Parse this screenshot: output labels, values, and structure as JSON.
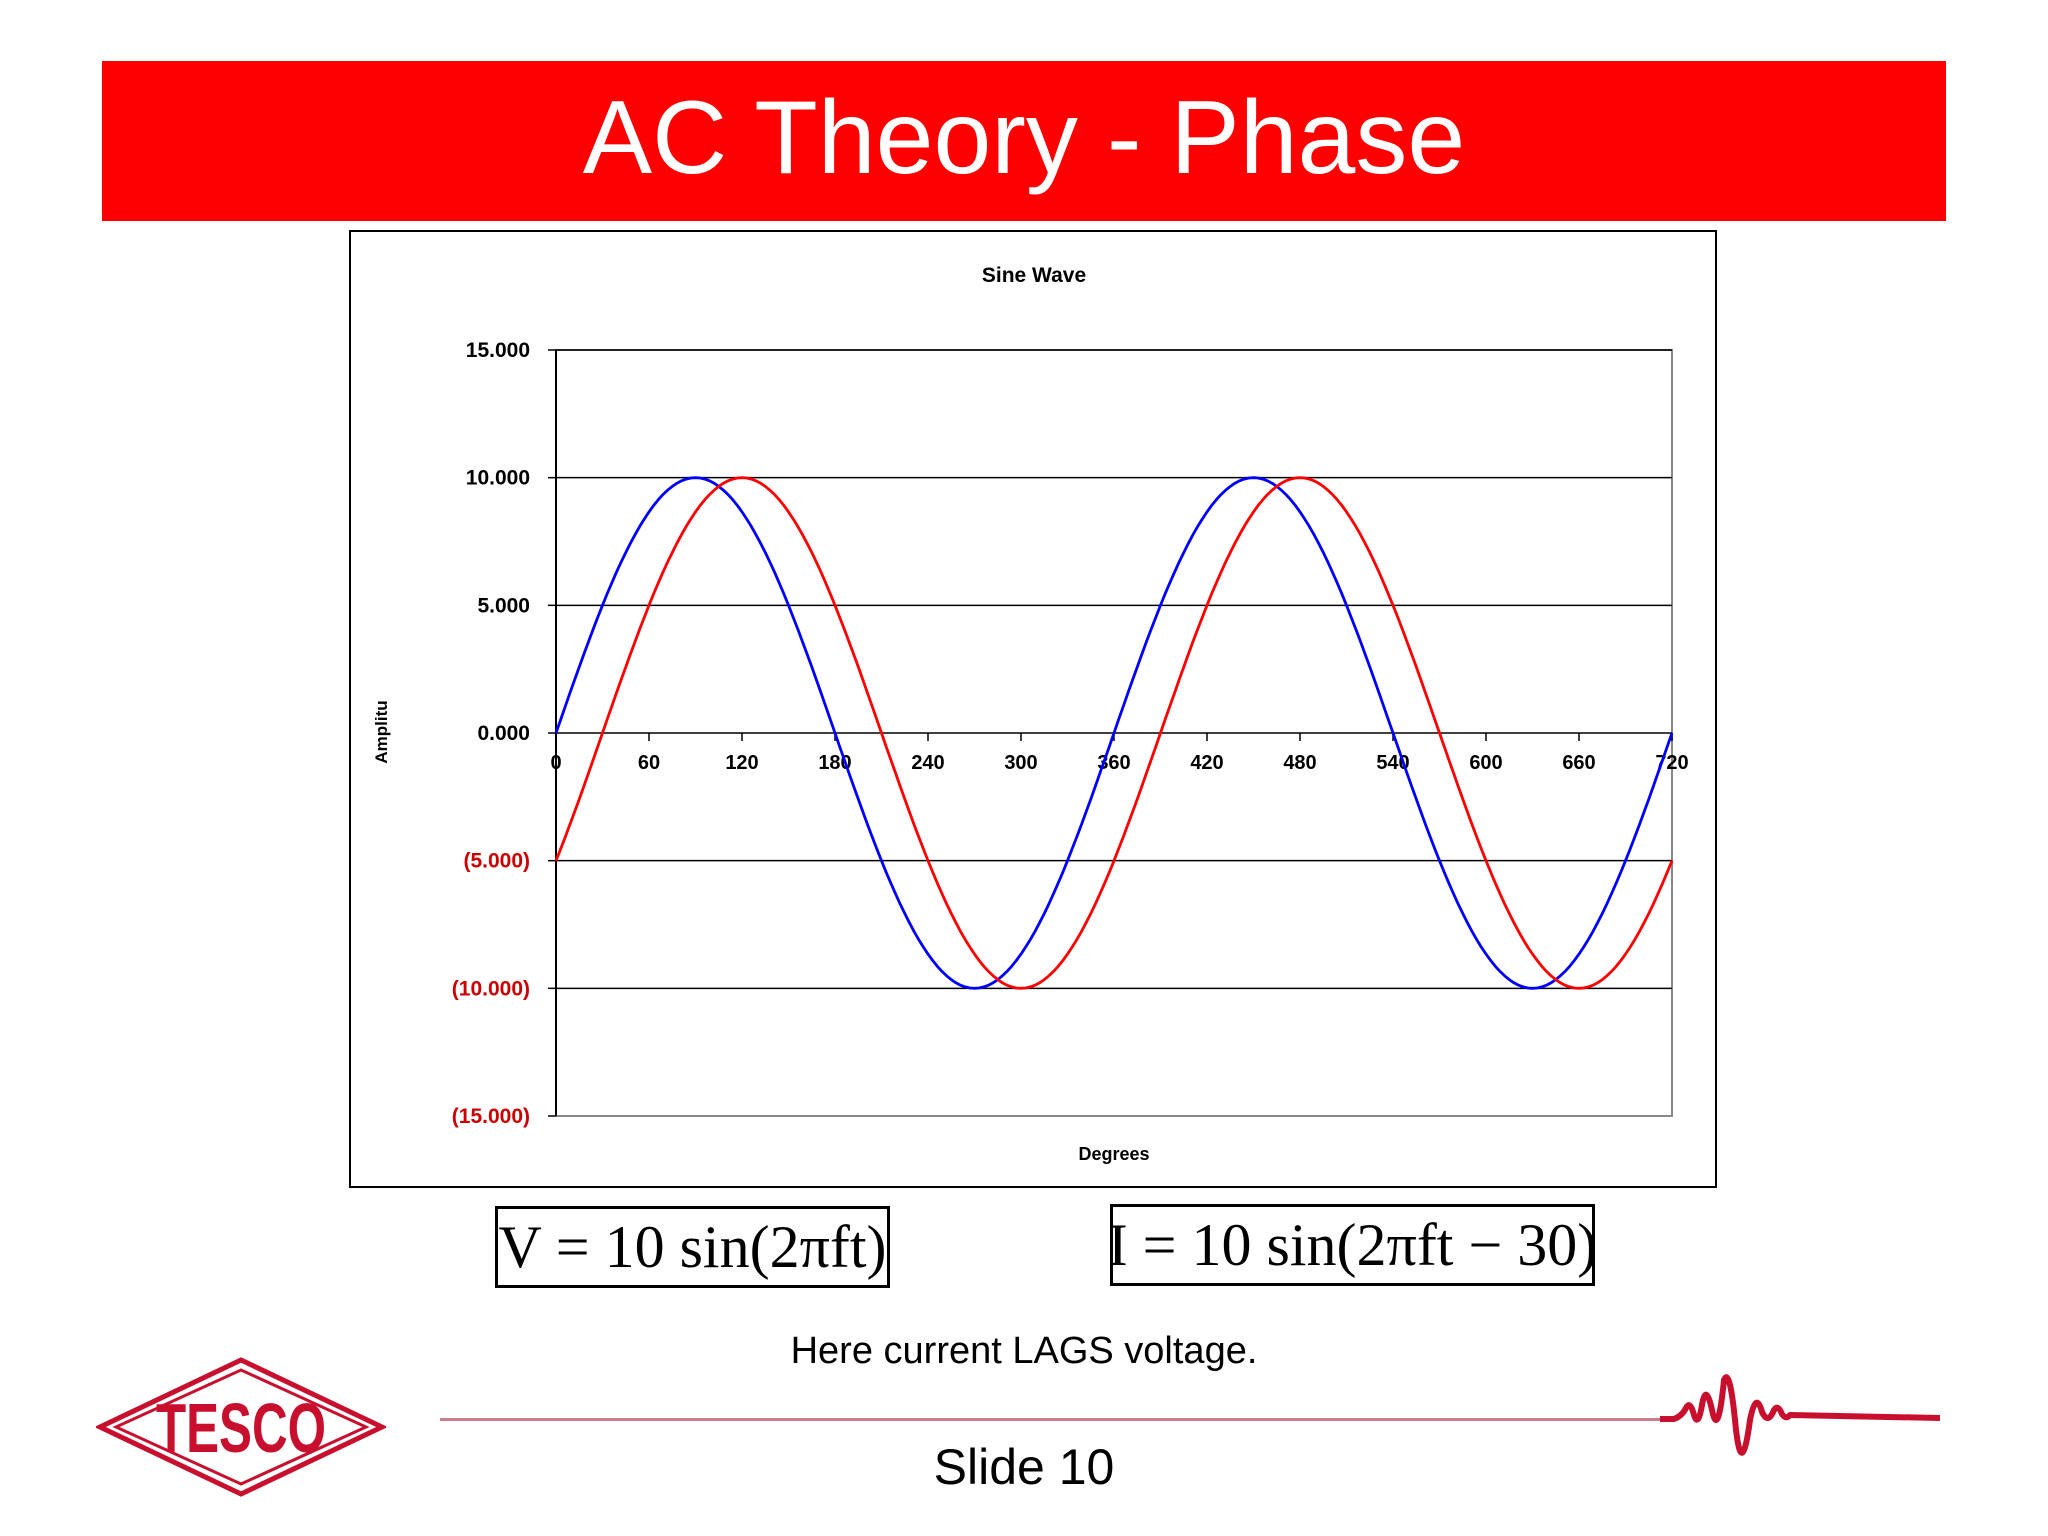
{
  "slide": {
    "title": "AC Theory - Phase",
    "caption": "Here current LAGS voltage.",
    "slide_number": "Slide 10",
    "logo_text": "TESCO",
    "colors": {
      "title_bar": "#ff0000",
      "voltage": "#0000ff",
      "current": "#ff0000",
      "logo": "#c8102e"
    }
  },
  "equations": {
    "voltage": "V = 10 sin(2πft)",
    "current": "I = 10 sin(2πft − 30)"
  },
  "chart_data": {
    "type": "line",
    "title": "Sine Wave",
    "xlabel": "Degrees",
    "ylabel": "Amplitu",
    "xlim": [
      0,
      720
    ],
    "ylim": [
      -15,
      15
    ],
    "x_ticks": [
      "0",
      "60",
      "120",
      "180",
      "240",
      "300",
      "360",
      "420",
      "480",
      "540",
      "600",
      "660",
      "720"
    ],
    "y_ticks": [
      {
        "value": 15,
        "label": "15.000"
      },
      {
        "value": 10,
        "label": "10.000"
      },
      {
        "value": 5,
        "label": "5.000"
      },
      {
        "value": 0,
        "label": "0.000"
      },
      {
        "value": -5,
        "label": "(5.000)"
      },
      {
        "value": -10,
        "label": "(10.000)"
      },
      {
        "value": -15,
        "label": "(15.000)"
      }
    ],
    "negative_label_color": "#cc0000",
    "grid": "horizontal",
    "series": [
      {
        "color": "#0000ff",
        "x": [
          0,
          30,
          60,
          90,
          120,
          150,
          180,
          210,
          240,
          270,
          300,
          330,
          360,
          390,
          420,
          450,
          480,
          510,
          540,
          570,
          600,
          630,
          660,
          690,
          720
        ],
        "values": [
          0,
          5,
          8.66,
          10,
          8.66,
          5,
          0,
          -5,
          -8.66,
          -10,
          -8.66,
          -5,
          0,
          5,
          8.66,
          10,
          8.66,
          5,
          0,
          -5,
          -8.66,
          -10,
          -8.66,
          -5,
          0
        ]
      },
      {
        "color": "#ff0000",
        "x": [
          0,
          30,
          60,
          90,
          120,
          150,
          180,
          210,
          240,
          270,
          300,
          330,
          360,
          390,
          420,
          450,
          480,
          510,
          540,
          570,
          600,
          630,
          660,
          690,
          720
        ],
        "values": [
          -5,
          0,
          5,
          8.66,
          10,
          8.66,
          5,
          0,
          -5,
          -8.66,
          -10,
          -8.66,
          -5,
          0,
          5,
          8.66,
          10,
          8.66,
          5,
          0,
          -5,
          -8.66,
          -10,
          -8.66,
          -5
        ]
      }
    ]
  }
}
